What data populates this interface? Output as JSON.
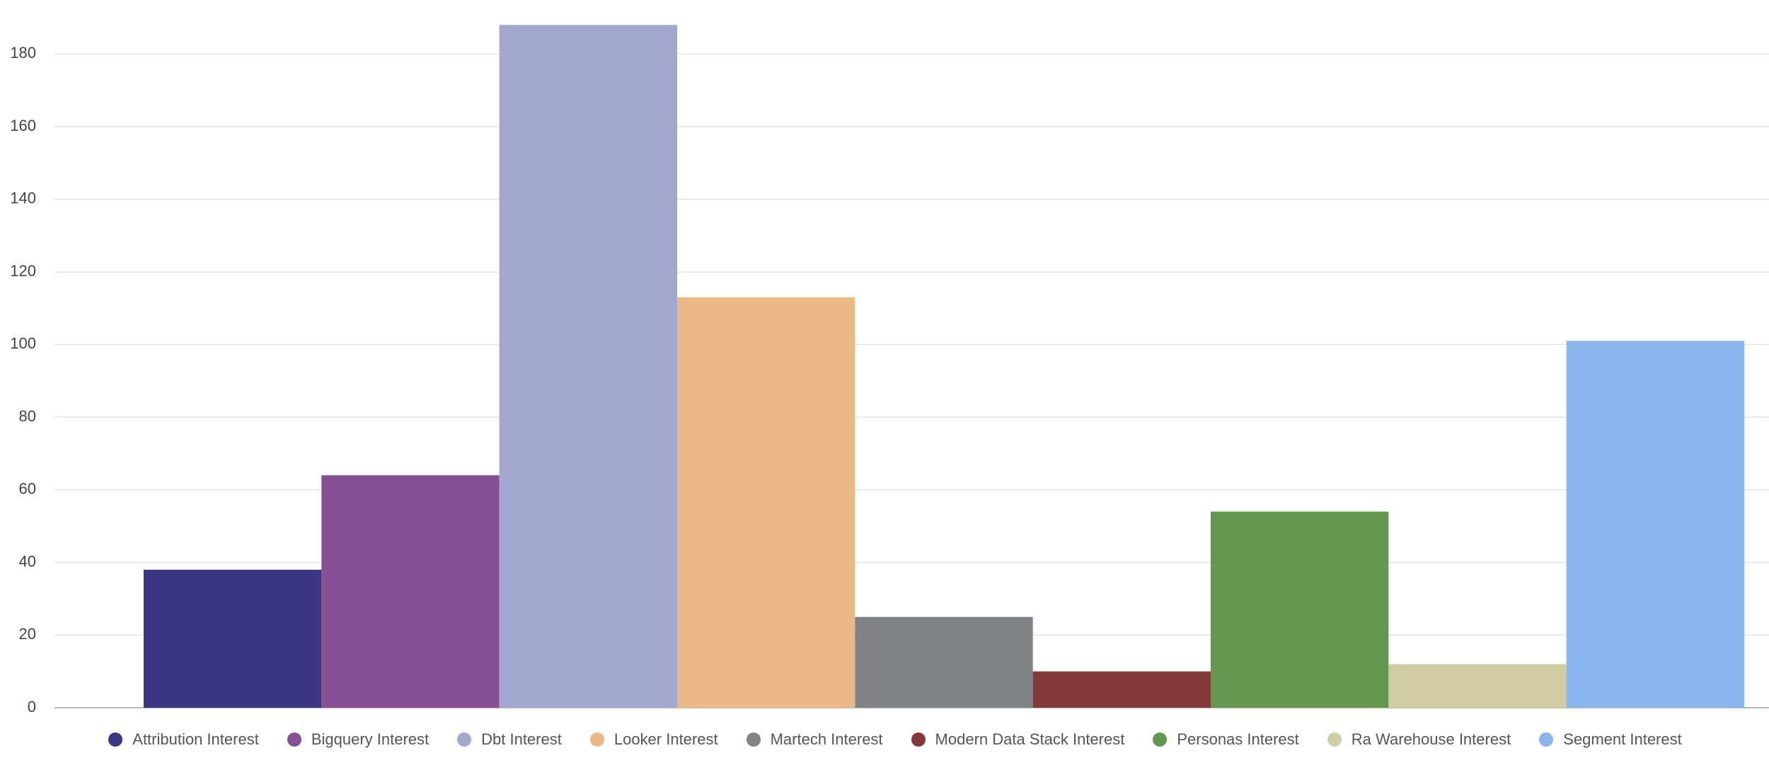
{
  "chart_data": {
    "type": "bar",
    "categories": [
      null
    ],
    "series": [
      {
        "name": "Attribution Interest",
        "color": "#3b3584",
        "values": [
          38
        ]
      },
      {
        "name": "Bigquery Interest",
        "color": "#864e93",
        "values": [
          64
        ]
      },
      {
        "name": "Dbt Interest",
        "color": "#a5a8ce",
        "values": [
          188
        ]
      },
      {
        "name": "Looker Interest",
        "color": "#eab986",
        "values": [
          113
        ]
      },
      {
        "name": "Martech Interest",
        "color": "#808285",
        "values": [
          25
        ]
      },
      {
        "name": "Modern Data Stack Interest",
        "color": "#833939",
        "values": [
          10
        ]
      },
      {
        "name": "Personas Interest",
        "color": "#64974f",
        "values": [
          54
        ]
      },
      {
        "name": "Ra Warehouse Interest",
        "color": "#d0cca4",
        "values": [
          12
        ]
      },
      {
        "name": "Segment Interest",
        "color": "#89b4ec",
        "values": [
          101
        ]
      }
    ],
    "ylim": [
      0,
      190
    ],
    "yticks": [
      0,
      20,
      40,
      60,
      80,
      100,
      120,
      140,
      160,
      180
    ],
    "grid": true,
    "legend": "bottom"
  }
}
